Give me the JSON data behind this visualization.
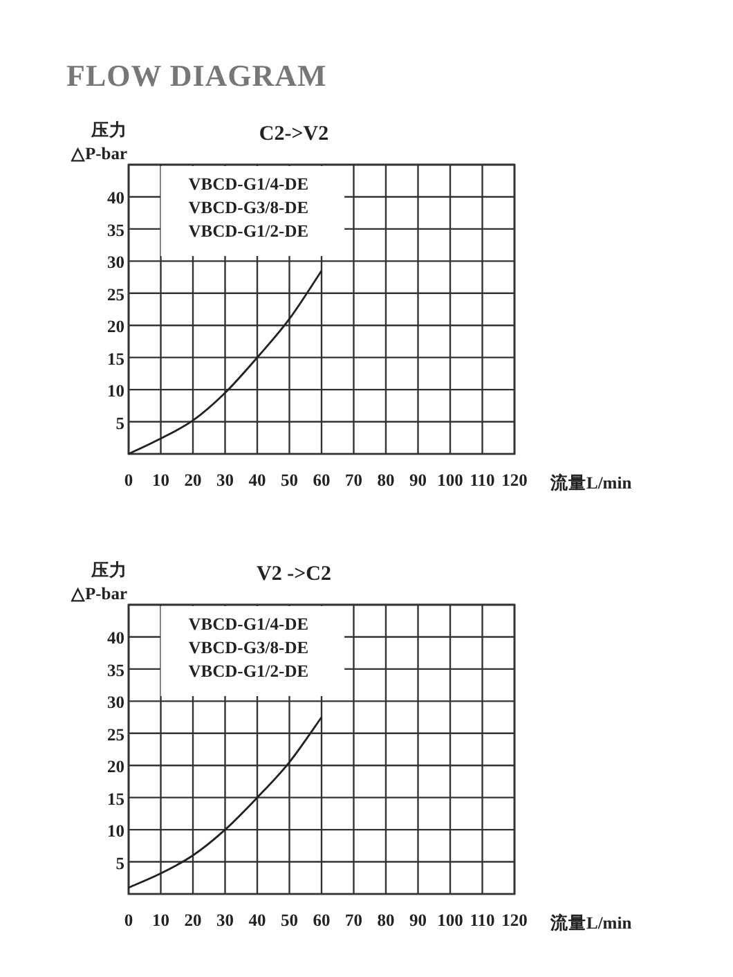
{
  "chart_data": [
    {
      "type": "line",
      "title": "FLOW DIAGRAM",
      "subtitle": "C2->V2",
      "ylabel": "压力\n△P-bar",
      "xlabel": "流量L/min",
      "x": [
        0,
        10,
        20,
        30,
        40,
        50,
        60
      ],
      "series": [
        {
          "color": "#222222",
          "values": [
            0,
            2.4,
            5.2,
            9.5,
            15,
            21,
            28.5
          ]
        }
      ],
      "xlim": [
        0,
        120
      ],
      "xticks": [
        0,
        10,
        20,
        30,
        40,
        50,
        60,
        70,
        80,
        90,
        100,
        110,
        120
      ],
      "ylim": [
        0,
        45
      ],
      "yticks": [
        5,
        10,
        15,
        20,
        25,
        30,
        35,
        40,
        {
          "value": 45,
          "label": null
        }
      ],
      "grid": true,
      "annotations": [
        "VBCD-G1/4-DE",
        "VBCD-G3/8-DE",
        "VBCD-G1/2-DE"
      ]
    },
    {
      "type": "line",
      "title": "V2 ->C2",
      "ylabel": "压力\n△P-bar",
      "xlabel": "流量L/min",
      "x": [
        0,
        10,
        20,
        30,
        40,
        50,
        60
      ],
      "series": [
        {
          "color": "#222222",
          "values": [
            1,
            3.2,
            6,
            10,
            15,
            20.5,
            27.5
          ]
        }
      ],
      "xlim": [
        0,
        120
      ],
      "xticks": [
        0,
        10,
        20,
        30,
        40,
        50,
        60,
        70,
        80,
        90,
        100,
        110,
        120
      ],
      "ylim": [
        0,
        45
      ],
      "yticks": [
        5,
        10,
        15,
        20,
        25,
        30,
        35,
        40,
        {
          "value": 45,
          "label": null
        }
      ],
      "grid": true,
      "annotations": [
        "VBCD-G1/4-DE",
        "VBCD-G3/8-DE",
        "VBCD-G1/2-DE"
      ]
    }
  ]
}
